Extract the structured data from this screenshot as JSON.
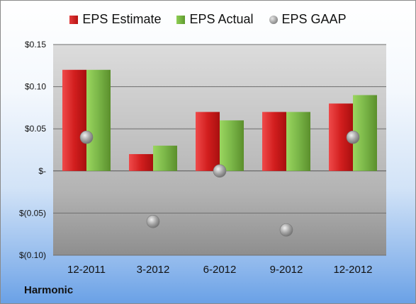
{
  "company": "Harmonic",
  "legend": {
    "estimate": "EPS Estimate",
    "actual": "EPS Actual",
    "gaap": "EPS GAAP"
  },
  "colors": {
    "estimate": "#c8191c",
    "actual": "#7ab648",
    "gaap": "#9b9b9b"
  },
  "chart_data": {
    "type": "bar",
    "categories": [
      "12-2011",
      "3-2012",
      "6-2012",
      "9-2012",
      "12-2012"
    ],
    "series": [
      {
        "name": "EPS Estimate",
        "type": "bar",
        "values": [
          0.12,
          0.02,
          0.07,
          0.07,
          0.08
        ]
      },
      {
        "name": "EPS Actual",
        "type": "bar",
        "values": [
          0.12,
          0.03,
          0.06,
          0.07,
          0.09
        ]
      },
      {
        "name": "EPS GAAP",
        "type": "scatter",
        "values": [
          0.04,
          -0.06,
          0.0,
          -0.07,
          0.04
        ]
      }
    ],
    "ylim": [
      -0.1,
      0.15
    ],
    "yticks": [
      0.15,
      0.1,
      0.05,
      0,
      -0.05,
      -0.1
    ],
    "ytick_labels": [
      "$0.15",
      "$0.10",
      "$0.05",
      "$-",
      "$(0.05)",
      "$(0.10)"
    ],
    "grid": true,
    "legend_position": "top"
  }
}
